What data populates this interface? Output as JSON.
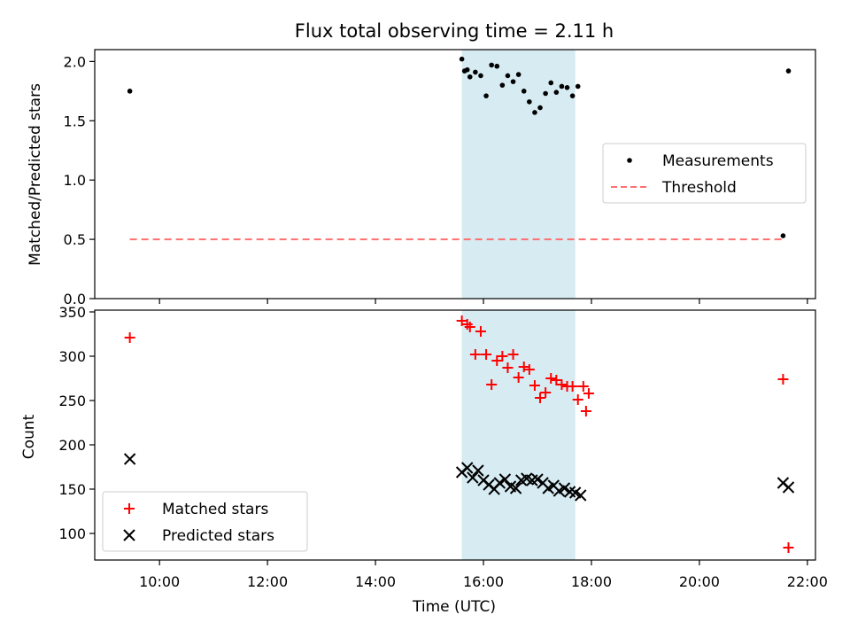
{
  "title": "Flux total observing time = 2.11 h",
  "xlabel": "Time (UTC)",
  "colors": {
    "measurement": "#000000",
    "threshold": "#ff7070",
    "matched": "#ff0000",
    "predicted": "#000000",
    "shade": "#add8e6"
  },
  "chart_data": [
    {
      "type": "scatter",
      "ylabel": "Matched/Predicted stars",
      "ylim": [
        0,
        2.1
      ],
      "y_ticks": [
        0.0,
        0.5,
        1.0,
        1.5,
        2.0
      ],
      "y_tick_labels": [
        "0.0",
        "0.5",
        "1.0",
        "1.5",
        "2.0"
      ],
      "x_ticks_hours": [
        10,
        12,
        14,
        16,
        18,
        20,
        22
      ],
      "shaded_span": [
        "15:36",
        "17:42"
      ],
      "legend": {
        "placement": "right",
        "entries": [
          "Measurements",
          "Threshold"
        ]
      },
      "series": [
        {
          "name": "Measurements",
          "marker": "dot",
          "x": [
            "09:27",
            "15:36",
            "15:39",
            "15:42",
            "15:45",
            "15:51",
            "15:57",
            "16:03",
            "16:09",
            "16:15",
            "16:21",
            "16:27",
            "16:33",
            "16:39",
            "16:45",
            "16:51",
            "16:57",
            "17:03",
            "17:09",
            "17:15",
            "17:21",
            "17:27",
            "17:33",
            "17:39",
            "17:45",
            "21:33",
            "21:39"
          ],
          "y": [
            1.75,
            2.02,
            1.92,
            1.93,
            1.87,
            1.91,
            1.88,
            1.71,
            1.97,
            1.96,
            1.8,
            1.88,
            1.83,
            1.89,
            1.75,
            1.66,
            1.57,
            1.61,
            1.73,
            1.82,
            1.74,
            1.79,
            1.78,
            1.71,
            1.79,
            0.53,
            1.92
          ]
        },
        {
          "name": "Threshold",
          "style": "dashed",
          "x": [
            "09:27",
            "21:33"
          ],
          "y": [
            0.5,
            0.5
          ]
        }
      ]
    },
    {
      "type": "scatter",
      "ylabel": "Count",
      "ylim": [
        70,
        352
      ],
      "y_ticks": [
        100,
        150,
        200,
        250,
        300,
        350
      ],
      "y_tick_labels": [
        "100",
        "150",
        "200",
        "250",
        "300",
        "350"
      ],
      "x_ticks_hours": [
        10,
        12,
        14,
        16,
        18,
        20,
        22
      ],
      "x_tick_labels": [
        "10:00",
        "12:00",
        "14:00",
        "16:00",
        "18:00",
        "20:00",
        "22:00"
      ],
      "shaded_span": [
        "15:36",
        "17:42"
      ],
      "legend": {
        "placement": "lower left",
        "entries": [
          "Matched stars",
          "Predicted stars"
        ]
      },
      "series": [
        {
          "name": "Matched stars",
          "marker": "plus",
          "x": [
            "09:27",
            "15:36",
            "15:42",
            "15:45",
            "15:51",
            "15:57",
            "16:03",
            "16:09",
            "16:15",
            "16:21",
            "16:27",
            "16:33",
            "16:39",
            "16:45",
            "16:51",
            "16:57",
            "17:03",
            "17:09",
            "17:15",
            "17:21",
            "17:27",
            "17:33",
            "17:39",
            "17:45",
            "17:51",
            "17:54",
            "17:57",
            "21:33",
            "21:39"
          ],
          "y": [
            321,
            340,
            336,
            333,
            302,
            328,
            302,
            268,
            295,
            300,
            287,
            302,
            276,
            288,
            285,
            267,
            253,
            259,
            275,
            273,
            268,
            266,
            266,
            251,
            266,
            238,
            258,
            274,
            84
          ]
        },
        {
          "name": "Predicted stars",
          "marker": "x",
          "x": [
            "09:27",
            "15:36",
            "15:42",
            "15:48",
            "15:54",
            "16:00",
            "16:06",
            "16:12",
            "16:18",
            "16:24",
            "16:30",
            "16:36",
            "16:42",
            "16:48",
            "16:54",
            "17:00",
            "17:06",
            "17:12",
            "17:18",
            "17:24",
            "17:30",
            "17:36",
            "17:42",
            "17:48",
            "21:33",
            "21:39"
          ],
          "y": [
            184,
            169,
            174,
            163,
            171,
            160,
            155,
            150,
            157,
            161,
            153,
            151,
            160,
            162,
            160,
            161,
            157,
            151,
            154,
            148,
            151,
            147,
            146,
            143,
            157,
            152
          ]
        }
      ]
    }
  ]
}
